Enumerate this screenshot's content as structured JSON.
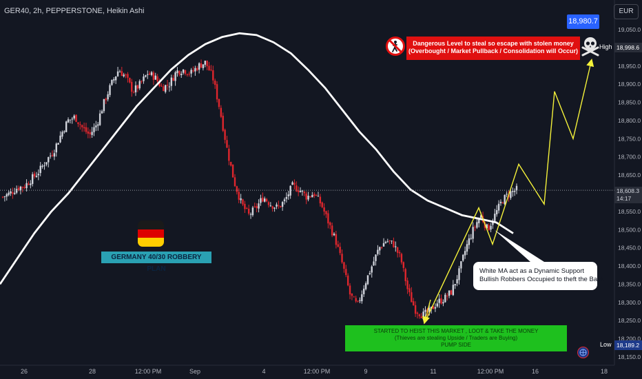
{
  "header": {
    "symbol_title": "GER40, 2h, PEPPERSTONE, Heikin Ashi",
    "currency": "EUR"
  },
  "price_tags": {
    "target": "18,980.7",
    "high_label": "High",
    "high_value": "18,998.6",
    "low_label": "Low",
    "low_value": "18,189.2",
    "current_price": "18,608.3",
    "countdown": "14:17"
  },
  "annotations": {
    "warning_line1": "Dangerous Level to steal so escape with stolen money",
    "warning_line2": "(Overbought / Market Pullback / Consolidation will Occur)",
    "plan_label": "GERMANY 40/30 ROBBERY PLAN",
    "callout_line1": "White MA act as a Dynamic Support",
    "callout_line2": "Bullish Robbers Occupied to theft the Bank",
    "green_line1": "STARTED TO HEIST THIS MARKET , LOOT & TAKE THE MONEY",
    "green_line2": "(Thieves are stealing Upside / Traders are Buying)",
    "green_line3": "PUMP SIDE"
  },
  "icons": {
    "warning": "no-pedestrian-warning-icon",
    "skull": "skull-crossbones-icon",
    "flag": "germany-flag-icon",
    "globe": "globe-icon"
  },
  "colors": {
    "background": "#131722",
    "bull": "#d1d4dc",
    "bear": "#e0262d",
    "moving_average": "#ffffff",
    "projection": "#f5f23a",
    "target_tag": "#2962ff",
    "warning_box": "#e01010",
    "plan_box": "#2aa1b3",
    "green_box": "#1ec01e"
  },
  "chart_data": {
    "type": "candlestick",
    "x_ticks": [
      "26",
      "28",
      "12:00 PM",
      "Sep",
      "4",
      "12:00 PM",
      "9",
      "11",
      "12:00 PM",
      "16",
      "18"
    ],
    "y_ticks": [
      19050,
      19000,
      18950,
      18900,
      18850,
      18800,
      18750,
      18700,
      18650,
      18600,
      18550,
      18500,
      18450,
      18400,
      18350,
      18300,
      18250,
      18200,
      18150
    ],
    "y_tick_labels": [
      "19,050.0",
      "19,000.0",
      "18,950.0",
      "18,900.0",
      "18,850.0",
      "18,800.0",
      "18,750.0",
      "18,700.0",
      "18,650.0",
      "18,600.0",
      "18,550.0",
      "18,500.0",
      "18,450.0",
      "18,400.0",
      "18,350.0",
      "18,300.0",
      "18,250.0",
      "18,200.0",
      "18,150.0"
    ],
    "ylim": [
      18130,
      19090
    ],
    "price_path": [
      18590,
      18600,
      18615,
      18620,
      18640,
      18660,
      18690,
      18715,
      18760,
      18800,
      18810,
      18780,
      18760,
      18790,
      18850,
      18900,
      18940,
      18920,
      18880,
      18900,
      18930,
      18920,
      18890,
      18900,
      18935,
      18940,
      18930,
      18950,
      18960,
      18920,
      18830,
      18720,
      18630,
      18570,
      18540,
      18560,
      18590,
      18570,
      18560,
      18580,
      18620,
      18610,
      18590,
      18600,
      18570,
      18520,
      18470,
      18400,
      18320,
      18290,
      18350,
      18400,
      18450,
      18470,
      18460,
      18420,
      18330,
      18280,
      18265,
      18275,
      18300,
      18310,
      18330,
      18380,
      18450,
      18500,
      18540,
      18500,
      18540,
      18580,
      18600,
      18610
    ],
    "moving_average": [
      18350,
      18420,
      18490,
      18550,
      18600,
      18660,
      18720,
      18780,
      18840,
      18890,
      18940,
      18980,
      19010,
      19030,
      19040,
      19035,
      19015,
      18985,
      18940,
      18890,
      18830,
      18770,
      18720,
      18660,
      18610,
      18580,
      18560,
      18540,
      18530,
      18520,
      18490
    ],
    "projection": [
      {
        "x": 618,
        "y": 18250
      },
      {
        "x": 695,
        "y": 18560
      },
      {
        "x": 715,
        "y": 18460
      },
      {
        "x": 753,
        "y": 18680
      },
      {
        "x": 790,
        "y": 18570
      },
      {
        "x": 805,
        "y": 18880
      },
      {
        "x": 832,
        "y": 18750
      },
      {
        "x": 858,
        "y": 18960
      }
    ],
    "current_price": 18608.3,
    "target": 18980.7,
    "high": 18998.6,
    "low": 18189.2
  }
}
